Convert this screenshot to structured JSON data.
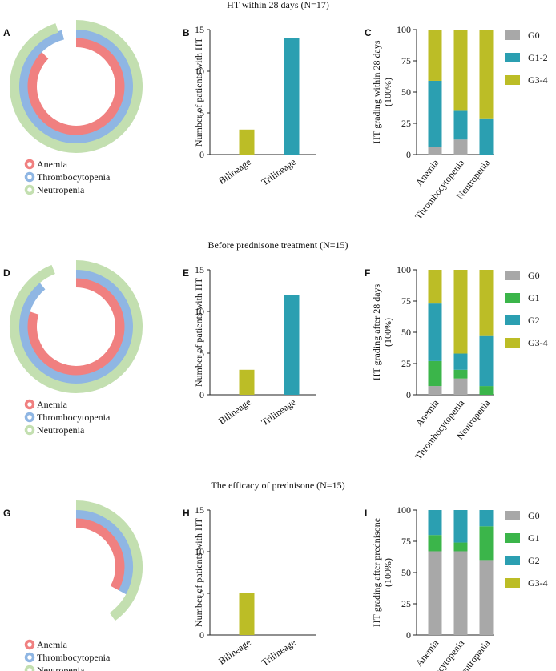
{
  "colors": {
    "anemia": "#f08080",
    "thrombocytopenia": "#8fb6e3",
    "neutropenia": "#c3dfb0",
    "olive": "#bcbd26",
    "teal": "#2b9fb1",
    "gray": "#a8a8a8",
    "green": "#3bb54a"
  },
  "rows": [
    {
      "title": "HT within 28 days (N=17)",
      "radial": {
        "letter": "A",
        "rings": [
          {
            "name": "Anemia",
            "fraction": 0.875,
            "color_key": "anemia"
          },
          {
            "name": "Thrombocytopenia",
            "fraction": 0.96,
            "color_key": "thrombocytopenia"
          },
          {
            "name": "Neutropenia",
            "fraction": 0.95,
            "color_key": "neutropenia"
          }
        ],
        "legend": [
          "Anemia",
          "Thrombocytopenia",
          "Neutropenia"
        ]
      },
      "bar": {
        "letter": "B",
        "ylabel": "Number of patients with HT",
        "categories": [
          "Bilineage",
          "Trilineage"
        ],
        "values": [
          3,
          14
        ],
        "colors": [
          "olive",
          "teal"
        ],
        "ylim": [
          0,
          15
        ],
        "yticks": [
          0,
          5,
          10,
          15
        ]
      },
      "stacked": {
        "letter": "C",
        "ylabel": "HT grading within 28 days",
        "ylabel2": "(100%)",
        "categories": [
          "Anemia",
          "Thrombocytopenia",
          "Neutropenia"
        ],
        "series": [
          {
            "name": "G0",
            "color_key": "gray",
            "values": [
              6,
              12,
              0
            ]
          },
          {
            "name": "G1-2",
            "color_key": "teal",
            "values": [
              53,
              23,
              29
            ]
          },
          {
            "name": "G3-4",
            "color_key": "olive",
            "values": [
              41,
              65,
              71
            ]
          }
        ],
        "ylim": [
          0,
          100
        ],
        "yticks": [
          0,
          25,
          50,
          75,
          100
        ]
      }
    },
    {
      "title": "Before prednisone treatment (N=15)",
      "radial": {
        "letter": "D",
        "rings": [
          {
            "name": "Anemia",
            "fraction": 0.8,
            "color_key": "anemia"
          },
          {
            "name": "Thrombocytopenia",
            "fraction": 0.89,
            "color_key": "thrombocytopenia"
          },
          {
            "name": "Neutropenia",
            "fraction": 0.94,
            "color_key": "neutropenia"
          }
        ],
        "legend": [
          "Anemia",
          "Thrombocytopenia",
          "Neutropenia"
        ]
      },
      "bar": {
        "letter": "E",
        "ylabel": "Number of patients with HT",
        "categories": [
          "Bilineage",
          "Trilineage"
        ],
        "values": [
          3,
          12
        ],
        "colors": [
          "olive",
          "teal"
        ],
        "ylim": [
          0,
          15
        ],
        "yticks": [
          0,
          5,
          10,
          15
        ]
      },
      "stacked": {
        "letter": "F",
        "ylabel": "HT grading after 28 days",
        "ylabel2": "(100%)",
        "categories": [
          "Anemia",
          "Thrombocytopenia",
          "Neutropenia"
        ],
        "series": [
          {
            "name": "G0",
            "color_key": "gray",
            "values": [
              7,
              13,
              0
            ]
          },
          {
            "name": "G1",
            "color_key": "green",
            "values": [
              20,
              7,
              7
            ]
          },
          {
            "name": "G2",
            "color_key": "teal",
            "values": [
              46,
              13,
              40
            ]
          },
          {
            "name": "G3-4",
            "color_key": "olive",
            "values": [
              27,
              67,
              53
            ]
          }
        ],
        "ylim": [
          0,
          100
        ],
        "yticks": [
          0,
          25,
          50,
          75,
          100
        ]
      }
    },
    {
      "title": "The efficacy of  prednisone (N=15)",
      "radial": {
        "letter": "G",
        "rings": [
          {
            "name": "Anemia",
            "fraction": 0.33,
            "color_key": "anemia"
          },
          {
            "name": "Thrombocytopenia",
            "fraction": 0.33,
            "color_key": "thrombocytopenia"
          },
          {
            "name": "Neutropenia",
            "fraction": 0.4,
            "color_key": "neutropenia"
          }
        ],
        "legend": [
          "Anemia",
          "Thrombocytopenia",
          "Neutropenia"
        ]
      },
      "bar": {
        "letter": "H",
        "ylabel": "Number of patients with HT",
        "categories": [
          "Bilineage",
          "Trilineage"
        ],
        "values": [
          5,
          0
        ],
        "colors": [
          "olive",
          "teal"
        ],
        "ylim": [
          0,
          15
        ],
        "yticks": [
          0,
          5,
          10,
          15
        ]
      },
      "stacked": {
        "letter": "I",
        "ylabel": "HT grading after prednisone",
        "ylabel2": "(100%)",
        "categories": [
          "Anemia",
          "Thrombocytopenia",
          "Neutropenia"
        ],
        "series": [
          {
            "name": "G0",
            "color_key": "gray",
            "values": [
              67,
              67,
              60
            ]
          },
          {
            "name": "G1",
            "color_key": "green",
            "values": [
              13,
              7,
              27
            ]
          },
          {
            "name": "G2",
            "color_key": "teal",
            "values": [
              20,
              26,
              13
            ]
          },
          {
            "name": "G3-4",
            "color_key": "olive",
            "values": [
              0,
              0,
              0
            ]
          }
        ],
        "ylim": [
          0,
          100
        ],
        "yticks": [
          0,
          25,
          50,
          75,
          100
        ]
      }
    }
  ],
  "chart_data": [
    {
      "type": "pie",
      "title": "HT within 28 days (N=17)",
      "panel": "A",
      "categories": [
        "Anemia",
        "Thrombocytopenia",
        "Neutropenia"
      ],
      "values": [
        0.875,
        0.96,
        0.95
      ]
    },
    {
      "type": "bar",
      "panel": "B",
      "categories": [
        "Bilineage",
        "Trilineage"
      ],
      "values": [
        3,
        14
      ],
      "ylabel": "Number of patients with HT",
      "ylim": [
        0,
        15
      ]
    },
    {
      "type": "bar",
      "panel": "C",
      "categories": [
        "Anemia",
        "Thrombocytopenia",
        "Neutropenia"
      ],
      "series": [
        {
          "name": "G0",
          "values": [
            6,
            12,
            0
          ]
        },
        {
          "name": "G1-2",
          "values": [
            53,
            23,
            29
          ]
        },
        {
          "name": "G3-4",
          "values": [
            41,
            65,
            71
          ]
        }
      ],
      "ylabel": "HT grading within 28 days (100%)",
      "ylim": [
        0,
        100
      ]
    },
    {
      "type": "pie",
      "title": "Before prednisone treatment (N=15)",
      "panel": "D",
      "categories": [
        "Anemia",
        "Thrombocytopenia",
        "Neutropenia"
      ],
      "values": [
        0.8,
        0.89,
        0.94
      ]
    },
    {
      "type": "bar",
      "panel": "E",
      "categories": [
        "Bilineage",
        "Trilineage"
      ],
      "values": [
        3,
        12
      ],
      "ylabel": "Number of patients with HT",
      "ylim": [
        0,
        15
      ]
    },
    {
      "type": "bar",
      "panel": "F",
      "categories": [
        "Anemia",
        "Thrombocytopenia",
        "Neutropenia"
      ],
      "series": [
        {
          "name": "G0",
          "values": [
            7,
            13,
            0
          ]
        },
        {
          "name": "G1",
          "values": [
            20,
            7,
            7
          ]
        },
        {
          "name": "G2",
          "values": [
            46,
            13,
            40
          ]
        },
        {
          "name": "G3-4",
          "values": [
            27,
            67,
            53
          ]
        }
      ],
      "ylabel": "HT grading after 28 days (100%)",
      "ylim": [
        0,
        100
      ]
    },
    {
      "type": "pie",
      "title": "The efficacy of  prednisone (N=15)",
      "panel": "G",
      "categories": [
        "Anemia",
        "Thrombocytopenia",
        "Neutropenia"
      ],
      "values": [
        0.33,
        0.33,
        0.4
      ]
    },
    {
      "type": "bar",
      "panel": "H",
      "categories": [
        "Bilineage",
        "Trilineage"
      ],
      "values": [
        5,
        0
      ],
      "ylabel": "Number of patients with HT",
      "ylim": [
        0,
        15
      ]
    },
    {
      "type": "bar",
      "panel": "I",
      "categories": [
        "Anemia",
        "Thrombocytopenia",
        "Neutropenia"
      ],
      "series": [
        {
          "name": "G0",
          "values": [
            67,
            67,
            60
          ]
        },
        {
          "name": "G1",
          "values": [
            13,
            7,
            27
          ]
        },
        {
          "name": "G2",
          "values": [
            20,
            26,
            13
          ]
        },
        {
          "name": "G3-4",
          "values": [
            0,
            0,
            0
          ]
        }
      ],
      "ylabel": "HT grading after prednisone (100%)",
      "ylim": [
        0,
        100
      ]
    }
  ]
}
